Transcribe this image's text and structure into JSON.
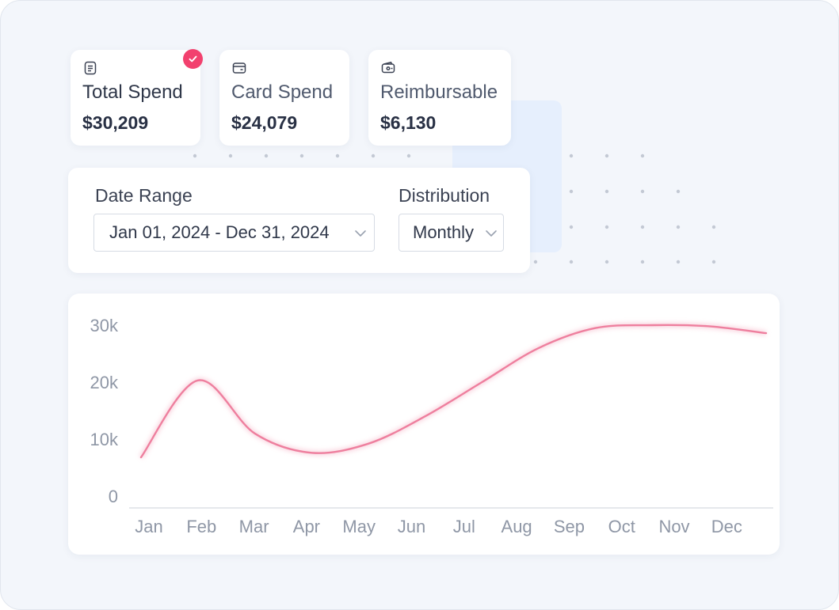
{
  "colors": {
    "accent": "#f2416e",
    "line": "#ee7f9e",
    "text": "#2f3749",
    "muted": "#8f97a6",
    "background": "#f3f6fb"
  },
  "stats": [
    {
      "icon": "document-icon",
      "label": "Total Spend",
      "value": "$30,209",
      "selected": true
    },
    {
      "icon": "card-icon",
      "label": "Card Spend",
      "value": "$24,079",
      "selected": false
    },
    {
      "icon": "wallet-icon",
      "label": "Reimbursable",
      "value": "$6,130",
      "selected": false
    }
  ],
  "filters": {
    "date_range_label": "Date Range",
    "date_range_value": "Jan 01, 2024 - Dec 31, 2024",
    "distribution_label": "Distribution",
    "distribution_value": "Monthly"
  },
  "chart_data": {
    "type": "line",
    "x_ticks": [
      "Jan",
      "Feb",
      "Mar",
      "Apr",
      "May",
      "Jun",
      "Jul",
      "Aug",
      "Sep",
      "Oct",
      "Nov",
      "Dec"
    ],
    "y_ticks": [
      "30k",
      "20k",
      "10k",
      "0"
    ],
    "ylim": [
      0,
      30000
    ],
    "grid": false,
    "series": [
      {
        "values": [
          6800,
          20300,
          11000,
          7600,
          9200,
          14000,
          20000,
          26000,
          29500,
          30000,
          29800,
          28600
        ]
      }
    ]
  }
}
